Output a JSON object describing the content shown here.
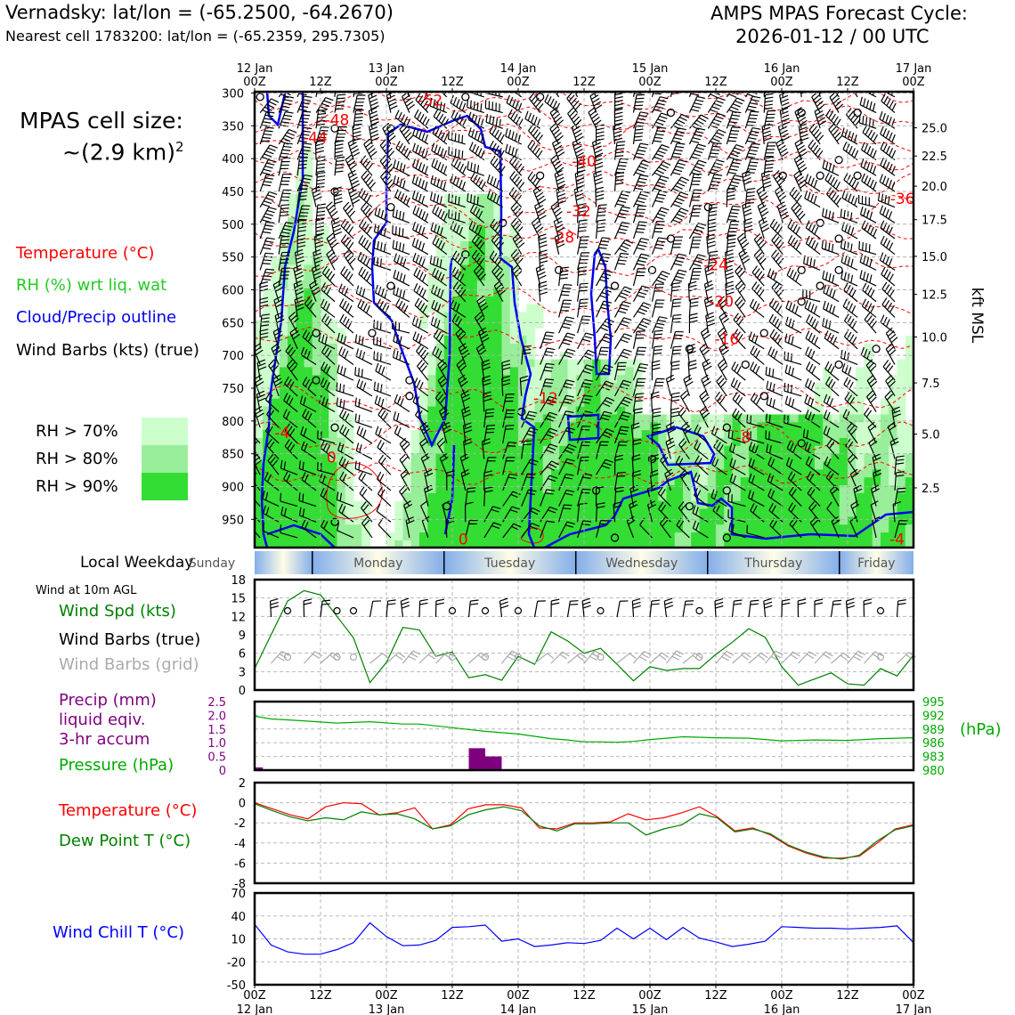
{
  "header": {
    "station_line": "Vernadsky: lat/lon = (-65.2500, -64.2670)",
    "cell_line": "Nearest cell 1783200: lat/lon = (-65.2359, 295.7305)",
    "cycle_label": "AMPS MPAS Forecast Cycle:",
    "cycle_value": "2026-01-12 / 00 UTC"
  },
  "cell_size": {
    "line1": "MPAS cell size:",
    "line2": "~(2.9 km)",
    "exp": "2"
  },
  "legend": {
    "temperature": "Temperature (°C)",
    "rh": "RH (%) wrt liq. wat",
    "cloud": "Cloud/Precip outline",
    "barbs": "Wind Barbs (kts) (true)",
    "rh70": "RH > 70%",
    "rh80": "RH > 80%",
    "rh90": "RH > 90%"
  },
  "time_axis": {
    "labels_top": [
      "00Z",
      "12Z",
      "00Z",
      "12Z",
      "00Z",
      "12Z",
      "00Z",
      "12Z",
      "00Z",
      "12Z",
      "00Z"
    ],
    "dates": [
      "12 Jan",
      "",
      "13 Jan",
      "",
      "14 Jan",
      "",
      "15 Jan",
      "",
      "16 Jan",
      "",
      "17 Jan"
    ]
  },
  "weekday": {
    "label": "Local Weekday",
    "days": [
      "Sunday",
      "Monday",
      "Tuesday",
      "Wednesday",
      "Thursday",
      "Friday"
    ]
  },
  "colors": {
    "temp": "#ff0000",
    "rh": "#22cc22",
    "cloud": "#0000ee",
    "precip": "#7f007f",
    "pressure": "#00aa00",
    "dew": "#008000",
    "chill": "#0000ff",
    "rh70": "#ccffcc",
    "rh80": "#99ee99",
    "rh90": "#33dd33"
  },
  "chart_data": [
    {
      "type": "time-height cross section",
      "ylabel_left": "hPa",
      "ylabel_right": "kft MSL",
      "pressure_ticks": [
        300,
        350,
        400,
        450,
        500,
        550,
        600,
        650,
        700,
        750,
        800,
        850,
        900,
        950
      ],
      "kft_ticks": [
        "25.0",
        "22.5",
        "20.0",
        "17.5",
        "15.0",
        "12.5",
        "10.0",
        "7.5",
        "5.0",
        "2.5"
      ],
      "kft_pressures": [
        353,
        396,
        442,
        493,
        549,
        607,
        672,
        742,
        820,
        902
      ],
      "ylim": [
        298,
        993
      ],
      "xlim_hours": [
        0,
        120
      ],
      "temperature_labels": [
        {
          "text": "-52",
          "h": 32,
          "p": 311
        },
        {
          "text": "-48",
          "h": 15,
          "p": 341
        },
        {
          "text": "-44",
          "h": 11,
          "p": 368
        },
        {
          "text": "-40",
          "h": 60,
          "p": 404
        },
        {
          "text": "-36",
          "h": 118,
          "p": 461
        },
        {
          "text": "-32",
          "h": 59,
          "p": 480
        },
        {
          "text": "-28",
          "h": 56,
          "p": 520
        },
        {
          "text": "-24",
          "h": 84,
          "p": 562
        },
        {
          "text": "-20",
          "h": 85,
          "p": 618
        },
        {
          "text": "-16",
          "h": 86,
          "p": 675
        },
        {
          "text": "-12",
          "h": 53,
          "p": 765
        },
        {
          "text": "-8",
          "h": 89,
          "p": 825
        },
        {
          "text": "-4",
          "h": 5,
          "p": 818
        },
        {
          "text": "-4",
          "h": 117,
          "p": 980
        },
        {
          "text": "0",
          "h": 14,
          "p": 855
        },
        {
          "text": "0",
          "h": 38,
          "p": 980
        }
      ]
    },
    {
      "type": "line",
      "title": "Wind at 10m AGL",
      "series_label": "Wind Spd (kts)",
      "barbs_true_label": "Wind Barbs (true)",
      "barbs_grid_label": "Wind Barbs (grid)",
      "ylim": [
        0,
        18
      ],
      "yticks": [
        0,
        3,
        6,
        9,
        12,
        15,
        18
      ],
      "x_hours": [
        0,
        6,
        9,
        12,
        18,
        21,
        24,
        27,
        30,
        33,
        36,
        39,
        42,
        45,
        48,
        51,
        54,
        57,
        60,
        63,
        66,
        69,
        72,
        75,
        78,
        81,
        84,
        87,
        90,
        93,
        96,
        99,
        102,
        105,
        108,
        111,
        114,
        117,
        120
      ],
      "values": [
        3.5,
        14.5,
        16.2,
        15.5,
        8.5,
        1.2,
        4.5,
        10.2,
        9.8,
        5.5,
        6.2,
        2.0,
        2.5,
        1.6,
        5.5,
        4.2,
        9.5,
        8.0,
        6.0,
        6.8,
        4.2,
        1.5,
        3.8,
        3.2,
        3.5,
        3.5,
        5.8,
        7.8,
        10.0,
        8.6,
        3.8,
        0.8,
        1.8,
        2.8,
        1.0,
        0.8,
        3.5,
        2.3,
        5.7
      ]
    },
    {
      "type": "bar+line",
      "precip_label": "Precip (mm)",
      "precip_label2": "liquid eqiv.",
      "precip_label3": "3-hr accum",
      "pressure_label": "Pressure (hPa)",
      "pressure_unit": "(hPa)",
      "precip_ylim": [
        0,
        2.5
      ],
      "precip_ticks": [
        "0",
        "0.5",
        "1.0",
        "1.5",
        "2.0",
        "2.5"
      ],
      "pressure_ylim": [
        980,
        995
      ],
      "pressure_ticks": [
        "980",
        "983",
        "986",
        "989",
        "992",
        "995"
      ],
      "precip_bars": [
        {
          "start": 0,
          "end": 1.5,
          "value": 0.1
        },
        {
          "start": 39,
          "end": 42,
          "value": 0.8
        },
        {
          "start": 42,
          "end": 45,
          "value": 0.5
        }
      ],
      "pressure_x": [
        0,
        3,
        9,
        15,
        21,
        27,
        30,
        36,
        42,
        48,
        54,
        57,
        60,
        63,
        66,
        69,
        72,
        75,
        78,
        84,
        90,
        96,
        99,
        102,
        108,
        114,
        120
      ],
      "pressure_values": [
        991.8,
        991.2,
        990.8,
        990.3,
        990.6,
        990.1,
        990.1,
        989.3,
        988.5,
        987.9,
        986.9,
        986.6,
        986.2,
        986.2,
        986.1,
        986.3,
        986.7,
        987.0,
        987.3,
        987.1,
        987.0,
        986.4,
        986.5,
        986.6,
        986.5,
        986.9,
        987.1
      ]
    },
    {
      "type": "line",
      "series": [
        {
          "name": "Temperature (°C)",
          "values": [
            0.0,
            -0.6,
            -1.2,
            -1.6,
            -0.4,
            0.0,
            -0.1,
            -1.2,
            -1.0,
            -0.5,
            -2.6,
            -2.2,
            -0.6,
            -0.2,
            -0.2,
            -0.5,
            -2.5,
            -2.6,
            -2.0,
            -2.0,
            -1.9,
            -1.1,
            -1.7,
            -1.5,
            -1.0,
            -0.4,
            -1.4,
            -2.8,
            -2.5,
            -3.2,
            -4.3,
            -5.0,
            -5.5,
            -5.5,
            -5.3,
            -4.0,
            -2.6,
            -2.2
          ]
        },
        {
          "name": "Dew Point T (°C)",
          "values": [
            -0.1,
            -0.8,
            -1.4,
            -1.8,
            -1.5,
            -1.7,
            -0.9,
            -1.2,
            -1.1,
            -1.6,
            -2.6,
            -2.3,
            -1.2,
            -0.7,
            -0.4,
            -0.8,
            -2.3,
            -2.8,
            -2.1,
            -2.1,
            -2.0,
            -2.0,
            -3.2,
            -2.6,
            -2.2,
            -1.1,
            -1.5,
            -2.9,
            -2.6,
            -3.1,
            -4.2,
            -4.9,
            -5.4,
            -5.6,
            -5.2,
            -3.8,
            -2.7,
            -2.3
          ]
        }
      ],
      "x_step_hours": 3.24,
      "ylim": [
        -8,
        2
      ],
      "yticks": [
        -8,
        -6,
        -4,
        -2,
        0,
        2
      ]
    },
    {
      "type": "line",
      "series_label": "Wind Chill T (°C)",
      "ylim": [
        -50,
        70
      ],
      "yticks": [
        -50,
        -20,
        10,
        40,
        70
      ],
      "x_hours": [
        0,
        3,
        6,
        9,
        12,
        15,
        18,
        21,
        24,
        27,
        30,
        33,
        36,
        39,
        42,
        45,
        48,
        51,
        54,
        57,
        60,
        63,
        66,
        69,
        72,
        75,
        78,
        81,
        84,
        87,
        90,
        93,
        96,
        99,
        102,
        105,
        108,
        111,
        114,
        117,
        120
      ],
      "values": [
        29,
        2,
        -7,
        -10,
        -10,
        -4,
        5,
        31,
        13,
        1,
        2,
        8,
        25,
        26,
        28,
        7,
        10,
        0,
        2,
        5,
        4,
        8,
        24,
        10,
        24,
        9,
        25,
        11,
        6,
        0,
        3,
        7,
        26,
        25,
        24,
        24,
        23,
        24,
        25,
        27,
        5
      ]
    }
  ],
  "bottom_axis": {
    "labels": [
      "00Z",
      "12Z",
      "00Z",
      "12Z",
      "00Z",
      "12Z",
      "00Z",
      "12Z",
      "00Z",
      "12Z",
      "00Z"
    ],
    "dates": [
      "12 Jan",
      "",
      "13 Jan",
      "",
      "14 Jan",
      "",
      "15 Jan",
      "",
      "16 Jan",
      "",
      "17 Jan"
    ]
  },
  "panel_labels": {
    "temperature": "Temperature (°C)",
    "dew": "Dew Point T (°C)"
  }
}
